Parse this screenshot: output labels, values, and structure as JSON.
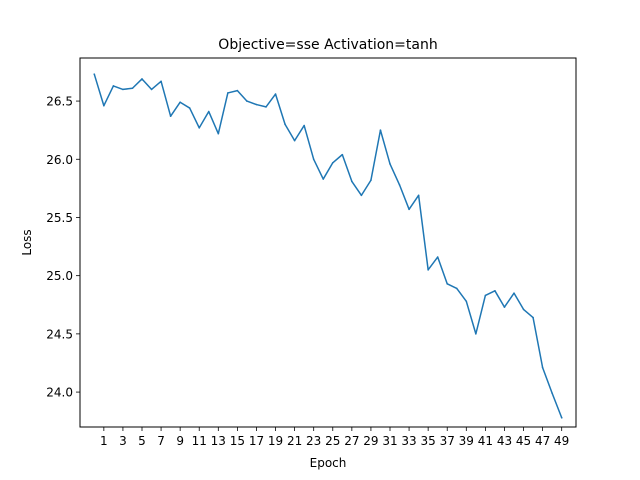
{
  "chart_data": {
    "type": "line",
    "title": "Objective=sse Activation=tanh",
    "xlabel": "Epoch",
    "ylabel": "Loss",
    "xlim": [
      -1.5,
      50.5
    ],
    "ylim": [
      23.7,
      26.87
    ],
    "xticks": [
      1,
      3,
      5,
      7,
      9,
      11,
      13,
      15,
      17,
      19,
      21,
      23,
      25,
      27,
      29,
      31,
      33,
      35,
      37,
      39,
      41,
      43,
      45,
      47,
      49
    ],
    "yticks": [
      24.0,
      24.5,
      25.0,
      25.5,
      26.0,
      26.5
    ],
    "ytick_labels": [
      "24.0",
      "24.5",
      "25.0",
      "25.5",
      "26.0",
      "26.5"
    ],
    "grid": false,
    "series": [
      {
        "color": "#1f77b4",
        "x": [
          0,
          1,
          2,
          3,
          4,
          5,
          6,
          7,
          8,
          9,
          10,
          11,
          12,
          13,
          14,
          15,
          16,
          17,
          18,
          19,
          20,
          21,
          22,
          23,
          24,
          25,
          26,
          27,
          28,
          29,
          30,
          31,
          32,
          33,
          34,
          35,
          36,
          37,
          38,
          39,
          40,
          41,
          42,
          43,
          44,
          45,
          46,
          47,
          48,
          49
        ],
        "values": [
          26.73,
          26.46,
          26.63,
          26.6,
          26.61,
          26.69,
          26.6,
          26.67,
          26.37,
          26.49,
          26.44,
          26.27,
          26.41,
          26.22,
          26.57,
          26.59,
          26.5,
          26.47,
          26.45,
          26.56,
          26.3,
          26.16,
          26.29,
          26.0,
          25.83,
          25.97,
          26.04,
          25.81,
          25.69,
          25.82,
          26.25,
          25.96,
          25.78,
          25.57,
          25.69,
          25.05,
          25.16,
          24.93,
          24.89,
          24.78,
          24.5,
          24.83,
          24.87,
          24.73,
          24.85,
          24.71,
          24.64,
          24.21,
          23.99,
          23.78
        ]
      }
    ]
  }
}
